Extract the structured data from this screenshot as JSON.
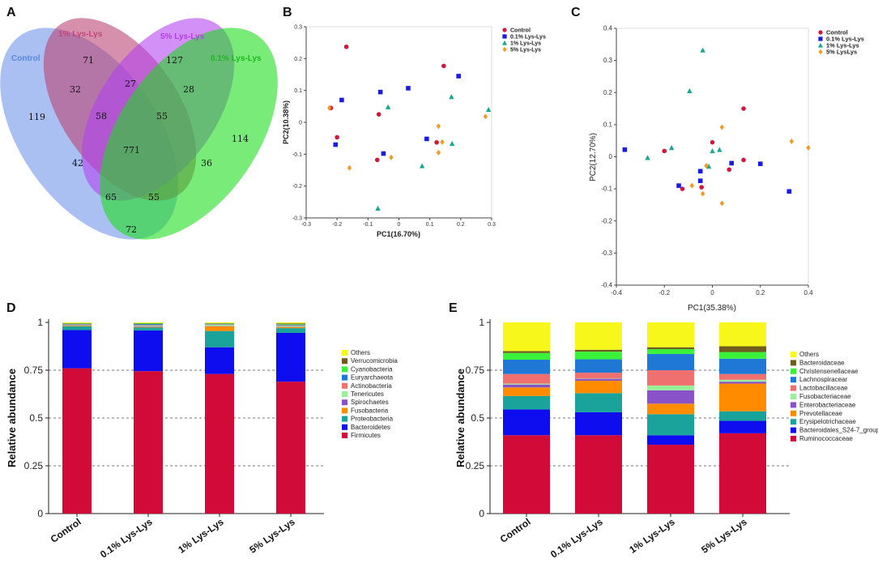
{
  "panel_labels": {
    "A": "A",
    "B": "B",
    "C": "C",
    "D": "D",
    "E": "E"
  },
  "chart_data": [
    {
      "panel": "A",
      "type": "venn",
      "sets": [
        {
          "name": "Control",
          "color": "#6a8fe8"
        },
        {
          "name": "1% Lys-Lys",
          "color": "#c2467a"
        },
        {
          "name": "5% Lys-Lys",
          "color": "#b040e8"
        },
        {
          "name": "0.1% Lys-Lys",
          "color": "#1db81d"
        }
      ],
      "counts": {
        "control_only": "119",
        "one_only": "71",
        "five_only": "127",
        "zero_one_only": "114",
        "control_one": "32",
        "one_five": "27",
        "five_zero_one": "28",
        "control_one_five": "58",
        "one_five_zero_one": "55",
        "all": "771",
        "control_five": "42",
        "one_zero_one": "36",
        "control_five_zero_one": "65",
        "control_one_zero_one": "55",
        "control_zero_one": "72"
      }
    },
    {
      "panel": "B",
      "type": "scatter",
      "xlabel": "PC1(16.70%)",
      "ylabel": "PC2(10.38%)",
      "xlim": [
        -0.3,
        0.3
      ],
      "ylim": [
        -0.3,
        0.3
      ],
      "xticks": [
        "-0.3",
        "-0.2",
        "-0.1",
        "0",
        "0.1",
        "0.2",
        "0.3"
      ],
      "yticks": [
        "0.3",
        "0.2",
        "0.1",
        "0",
        "-0.1",
        "-0.2",
        "-0.3"
      ],
      "series": [
        {
          "name": "Control",
          "color": "#d3163c",
          "shape": "circle",
          "points": [
            [
              -0.17,
              0.237
            ],
            [
              -0.22,
              0.045
            ],
            [
              -0.2,
              -0.047
            ],
            [
              -0.07,
              -0.118
            ],
            [
              -0.065,
              0.025
            ],
            [
              0.145,
              0.177
            ],
            [
              0.122,
              -0.063
            ]
          ]
        },
        {
          "name": "0.1% Lys-Lys",
          "color": "#1a1ae6",
          "shape": "square",
          "points": [
            [
              -0.185,
              0.07
            ],
            [
              -0.205,
              -0.07
            ],
            [
              -0.06,
              0.095
            ],
            [
              -0.05,
              -0.098
            ],
            [
              0.03,
              0.107
            ],
            [
              0.09,
              -0.052
            ],
            [
              0.193,
              0.145
            ]
          ]
        },
        {
          "name": "1% Lys-Lys",
          "color": "#17a894",
          "shape": "triangle",
          "points": [
            [
              -0.035,
              0.048
            ],
            [
              0.17,
              0.08
            ],
            [
              -0.068,
              -0.27
            ],
            [
              0.075,
              -0.137
            ],
            [
              0.172,
              -0.067
            ],
            [
              0.29,
              0.04
            ]
          ]
        },
        {
          "name": "5% Lys-Lys",
          "color": "#f59a1f",
          "shape": "diamond",
          "points": [
            [
              -0.225,
              0.045
            ],
            [
              -0.16,
              -0.143
            ],
            [
              -0.025,
              -0.11
            ],
            [
              0.128,
              -0.012
            ],
            [
              0.128,
              -0.095
            ],
            [
              0.28,
              0.018
            ],
            [
              0.14,
              -0.062
            ]
          ]
        }
      ]
    },
    {
      "panel": "C",
      "type": "scatter",
      "xlabel": "PC1(35.38%)",
      "ylabel": "PC2(12.70%)",
      "xlim": [
        -0.4,
        0.4
      ],
      "ylim": [
        -0.4,
        0.4
      ],
      "xticks": [
        "-0.4",
        "-0.2",
        "0",
        "0.2",
        "0.4"
      ],
      "yticks": [
        "0.4",
        "0.3",
        "0.2",
        "0.1",
        "0",
        "-0.1",
        "-0.2",
        "-0.3",
        "-0.4"
      ],
      "series": [
        {
          "name": "Control",
          "color": "#d3163c",
          "shape": "circle",
          "points": [
            [
              -0.2,
              0.018
            ],
            [
              -0.125,
              -0.1
            ],
            [
              0.0,
              0.045
            ],
            [
              -0.045,
              -0.095
            ],
            [
              0.07,
              -0.04
            ],
            [
              0.13,
              0.15
            ],
            [
              0.13,
              -0.01
            ]
          ]
        },
        {
          "name": "0.1% Lys-Lys",
          "color": "#1a1ae6",
          "shape": "square",
          "points": [
            [
              -0.365,
              0.022
            ],
            [
              -0.14,
              -0.09
            ],
            [
              -0.05,
              -0.045
            ],
            [
              -0.05,
              -0.075
            ],
            [
              0.08,
              -0.02
            ],
            [
              0.2,
              -0.022
            ],
            [
              0.32,
              -0.108
            ]
          ]
        },
        {
          "name": "1% Lys-Lys",
          "color": "#17a894",
          "shape": "triangle",
          "points": [
            [
              -0.04,
              0.332
            ],
            [
              -0.095,
              0.205
            ],
            [
              -0.17,
              0.028
            ],
            [
              -0.27,
              -0.003
            ],
            [
              0.0,
              0.018
            ],
            [
              0.03,
              0.022
            ],
            [
              -0.015,
              -0.03
            ]
          ]
        },
        {
          "name": "5% LysLys",
          "color": "#f59a1f",
          "shape": "diamond",
          "points": [
            [
              0.04,
              0.092
            ],
            [
              -0.025,
              -0.028
            ],
            [
              -0.04,
              -0.115
            ],
            [
              -0.085,
              -0.09
            ],
            [
              0.04,
              -0.145
            ],
            [
              0.33,
              0.048
            ],
            [
              0.4,
              0.028
            ]
          ]
        }
      ]
    },
    {
      "panel": "D",
      "type": "bar",
      "stacked": true,
      "ylabel": "Relative abundance",
      "ylim": [
        0,
        1
      ],
      "yticks": [
        "0",
        "0.25",
        "0.5",
        "0.75",
        "1"
      ],
      "categories": [
        "Control",
        "0.1% Lys-Lys",
        "1% Lys-Lys",
        "5% Lys-Lys"
      ],
      "series": [
        {
          "name": "Firmicutes",
          "color": "#d10a37",
          "values": [
            0.76,
            0.745,
            0.73,
            0.69
          ]
        },
        {
          "name": "Bacteroidetes",
          "color": "#0d0df0",
          "values": [
            0.2,
            0.213,
            0.14,
            0.255
          ]
        },
        {
          "name": "Proteobacteria",
          "color": "#1aa39a",
          "values": [
            0.02,
            0.015,
            0.085,
            0.025
          ]
        },
        {
          "name": "Fusobacteria",
          "color": "#ff8c00",
          "values": [
            0.003,
            0.003,
            0.025,
            0.005
          ]
        },
        {
          "name": "Spirochaetes",
          "color": "#8a52c8",
          "values": [
            0.002,
            0.003,
            0.002,
            0.002
          ]
        },
        {
          "name": "Tenericutes",
          "color": "#98f098",
          "values": [
            0.003,
            0.004,
            0.006,
            0.005
          ]
        },
        {
          "name": "Actinobacteria",
          "color": "#f07070",
          "values": [
            0.002,
            0.003,
            0.002,
            0.003
          ]
        },
        {
          "name": "Euryarchaeota",
          "color": "#1f78d6",
          "values": [
            0.002,
            0.005,
            0.002,
            0.003
          ]
        },
        {
          "name": "Cyanobacteria",
          "color": "#3af23a",
          "values": [
            0.002,
            0.003,
            0.002,
            0.003
          ]
        },
        {
          "name": "Verrucomicrobia",
          "color": "#6e5d1c",
          "values": [
            0.002,
            0.002,
            0.002,
            0.004
          ]
        },
        {
          "name": "Others",
          "color": "#f7f71c",
          "values": [
            0.004,
            0.004,
            0.004,
            0.005
          ]
        }
      ]
    },
    {
      "panel": "E",
      "type": "bar",
      "stacked": true,
      "ylabel": "Relative abundance",
      "ylim": [
        0,
        1
      ],
      "yticks": [
        "0",
        "0.25",
        "0.5",
        "0.75",
        "1"
      ],
      "categories": [
        "Control",
        "0.1% Lys-Lys",
        "1% Lys-Lys",
        "5% Lys-Lys"
      ],
      "series": [
        {
          "name": "Ruminococcaceae",
          "color": "#d10a37",
          "values": [
            0.41,
            0.41,
            0.36,
            0.42
          ]
        },
        {
          "name": "Bacteroidales_S24-7_group",
          "color": "#0d0df0",
          "values": [
            0.135,
            0.12,
            0.05,
            0.065
          ]
        },
        {
          "name": "Erysipelotrichaceae",
          "color": "#1aa39a",
          "values": [
            0.07,
            0.1,
            0.11,
            0.05
          ]
        },
        {
          "name": "Prevotellaceae",
          "color": "#ff8c00",
          "values": [
            0.045,
            0.065,
            0.055,
            0.145
          ]
        },
        {
          "name": "Enterobacteriaceae",
          "color": "#8a52c8",
          "values": [
            0.015,
            0.01,
            0.07,
            0.01
          ]
        },
        {
          "name": "Fusobacteriaceae",
          "color": "#98f098",
          "values": [
            0.005,
            0.002,
            0.025,
            0.01
          ]
        },
        {
          "name": "Lactobacillaceae",
          "color": "#f07070",
          "values": [
            0.05,
            0.03,
            0.08,
            0.03
          ]
        },
        {
          "name": "Lachnospiracear",
          "color": "#1f78d6",
          "values": [
            0.075,
            0.07,
            0.085,
            0.08
          ]
        },
        {
          "name": "Christensenellaceae",
          "color": "#3af23a",
          "values": [
            0.035,
            0.04,
            0.025,
            0.035
          ]
        },
        {
          "name": "Bacteroidaceae",
          "color": "#6e5d1c",
          "values": [
            0.01,
            0.01,
            0.01,
            0.03
          ]
        },
        {
          "name": "Others",
          "color": "#f7f71c",
          "values": [
            0.15,
            0.143,
            0.13,
            0.125
          ]
        }
      ]
    }
  ]
}
